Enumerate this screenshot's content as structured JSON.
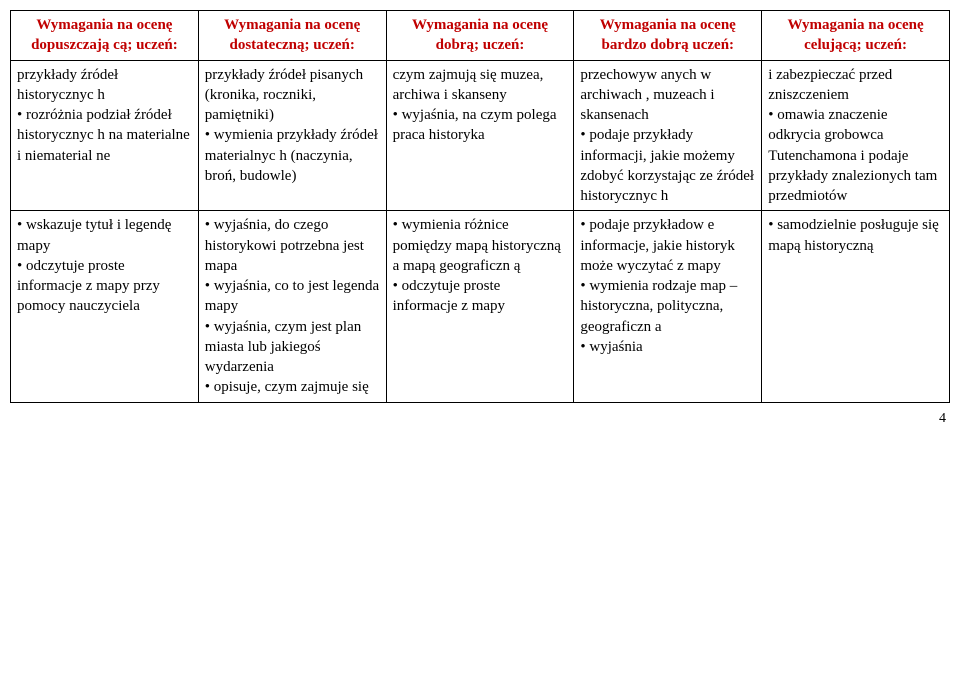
{
  "headers": [
    "Wymagania na ocenę dopuszczają cą; uczeń:",
    "Wymagania na ocenę dostateczną; uczeń:",
    "Wymagania na ocenę dobrą; uczeń:",
    "Wymagania na ocenę bardzo dobrą uczeń:",
    "Wymagania na ocenę celującą; uczeń:"
  ],
  "rows": [
    [
      "przykłady źródeł historycznyc h\n• rozróżnia podział źródeł historycznyc h na materialne i niematerial ne",
      "przykłady źródeł pisanych (kronika, roczniki, pamiętniki)\n• wymienia przykłady źródeł materialnyc h (naczynia, broń, budowle)",
      "czym zajmują się muzea, archiwa i skanseny\n• wyjaśnia, na czym polega praca historyka",
      "przechowyw anych w archiwach , muzeach i skansenach\n• podaje przykłady informacji, jakie możemy zdobyć korzystając ze źródeł historycznyc h",
      "i zabezpieczać przed zniszczeniem\n• omawia znaczenie odkrycia grobowca Tutenchamona i podaje przykłady znalezionych tam przedmiotów"
    ],
    [
      "• wskazuje tytuł i legendę mapy\n• odczytuje proste informacje z mapy przy pomocy nauczyciela",
      "• wyjaśnia, do czego historykowi potrzebna jest mapa\n• wyjaśnia, co to jest legenda mapy\n• wyjaśnia, czym jest plan miasta lub jakiegoś wydarzenia\n• opisuje, czym zajmuje się",
      "• wymienia różnice pomiędzy mapą historyczną a mapą geograficzn ą\n• odczytuje proste informacje z mapy",
      "• podaje przykładow e informacje, jakie historyk może wyczytać z mapy\n• wymienia rodzaje map – historyczna, polityczna, geograficzn a\n• wyjaśnia",
      "• samodzielnie posługuje się mapą historyczną"
    ]
  ],
  "page_number": "4",
  "colors": {
    "header_text": "#c00000",
    "border": "#000000",
    "body_text": "#000000",
    "background": "#ffffff"
  }
}
